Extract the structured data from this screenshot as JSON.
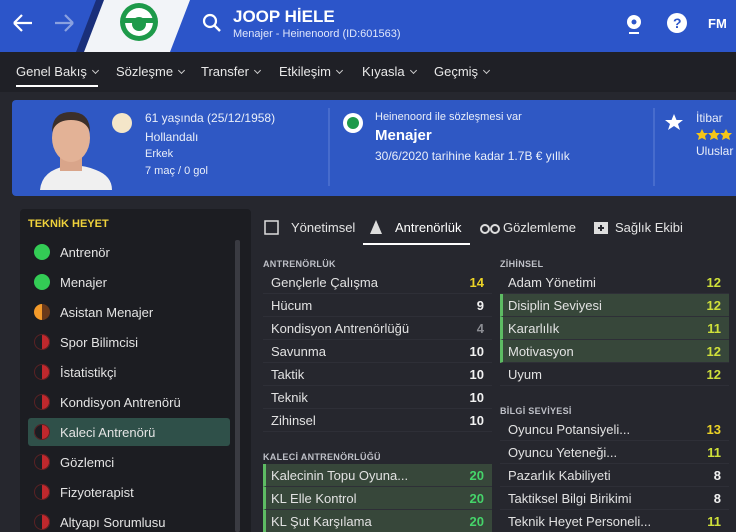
{
  "topbar": {
    "name": "JOOP HİELE",
    "subtitle": "Menajer - Heinenoord (ID:601563)",
    "help": "?",
    "brand": "FM"
  },
  "nav": {
    "items": [
      "Genel Bakış",
      "Sözleşme",
      "Transfer",
      "Etkileşim",
      "Kıyasla",
      "Geçmiş"
    ],
    "active": 0
  },
  "profile": {
    "age": "61 yaşında (25/12/1958)",
    "nationality": "Hollandalı",
    "gender": "Erkek",
    "record": "7 maç / 0 gol",
    "contract_status": "Heinenoord ile sözleşmesi var",
    "role": "Menajer",
    "contract_terms": "30/6/2020 tarihine kadar 1.7B € yıllık",
    "reputation_label": "İtibar",
    "reputation_level": "Uluslar"
  },
  "staff": {
    "title": "TEKNİK HEYET",
    "selected": 6,
    "items": [
      {
        "label": "Antrenör",
        "status": "good"
      },
      {
        "label": "Menajer",
        "status": "good"
      },
      {
        "label": "Asistan Menajer",
        "status": "warning"
      },
      {
        "label": "Spor Bilimcisi",
        "status": "poor"
      },
      {
        "label": "İstatistikçi",
        "status": "poor"
      },
      {
        "label": "Kondisyon Antrenörü",
        "status": "poor"
      },
      {
        "label": "Kaleci Antrenörü",
        "status": "poor"
      },
      {
        "label": "Gözlemci",
        "status": "poor"
      },
      {
        "label": "Fizyoterapist",
        "status": "poor"
      },
      {
        "label": "Altyapı Sorumlusu",
        "status": "poor"
      }
    ]
  },
  "tabs": {
    "items": [
      "Yönetimsel",
      "Antrenörlük",
      "Gözlemleme",
      "Sağlık Ekibi"
    ],
    "active": 1
  },
  "columns": [
    {
      "sections": [
        {
          "title": "ANTRENÖRLÜK",
          "rows": [
            {
              "label": "Gençlerle Çalışma",
              "value": 14,
              "highlight": false
            },
            {
              "label": "Hücum",
              "value": 9,
              "highlight": false
            },
            {
              "label": "Kondisyon Antrenörlüğü",
              "value": 4,
              "highlight": false
            },
            {
              "label": "Savunma",
              "value": 10,
              "highlight": false
            },
            {
              "label": "Taktik",
              "value": 10,
              "highlight": false
            },
            {
              "label": "Teknik",
              "value": 10,
              "highlight": false
            },
            {
              "label": "Zihinsel",
              "value": 10,
              "highlight": false
            }
          ]
        },
        {
          "title": "KALECİ ANTRENÖRLÜĞÜ",
          "rows": [
            {
              "label": "Kalecinin Topu Oyuna...",
              "value": 20,
              "highlight": true
            },
            {
              "label": "KL Elle Kontrol",
              "value": 20,
              "highlight": true
            },
            {
              "label": "KL Şut Karşılama",
              "value": 20,
              "highlight": true
            }
          ]
        }
      ]
    },
    {
      "sections": [
        {
          "title": "ZİHİNSEL",
          "rows": [
            {
              "label": "Adam Yönetimi",
              "value": 12,
              "highlight": false
            },
            {
              "label": "Disiplin Seviyesi",
              "value": 12,
              "highlight": true
            },
            {
              "label": "Kararlılık",
              "value": 11,
              "highlight": true
            },
            {
              "label": "Motivasyon",
              "value": 12,
              "highlight": true
            },
            {
              "label": "Uyum",
              "value": 12,
              "highlight": false
            }
          ]
        },
        {
          "title": "BİLGİ SEVİYESİ",
          "rows": [
            {
              "label": "Oyuncu Potansiyeli...",
              "value": 13,
              "highlight": false
            },
            {
              "label": "Oyuncu Yeteneği...",
              "value": 11,
              "highlight": false
            },
            {
              "label": "Pazarlık Kabiliyeti",
              "value": 8,
              "highlight": false
            },
            {
              "label": "Taktiksel Bilgi Birikimi",
              "value": 8,
              "highlight": false
            },
            {
              "label": "Teknik Heyet Personeli...",
              "value": 11,
              "highlight": false
            }
          ]
        }
      ]
    }
  ]
}
